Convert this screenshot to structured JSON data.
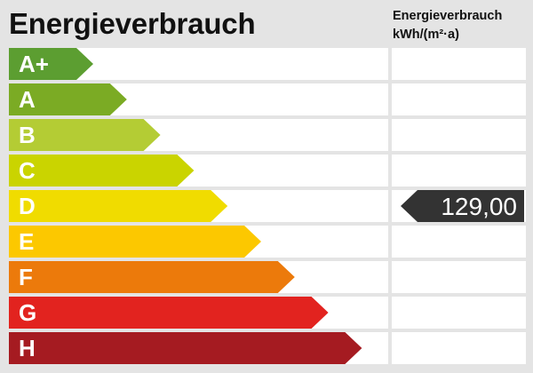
{
  "title": "Energieverbrauch",
  "column_header": {
    "line1": "Energieverbrauch",
    "line2": "kWh/(m²·a)"
  },
  "classes": [
    {
      "label": "A+",
      "color": "#5c9e31"
    },
    {
      "label": "A",
      "color": "#7bab24"
    },
    {
      "label": "B",
      "color": "#b4cc34"
    },
    {
      "label": "C",
      "color": "#cad400"
    },
    {
      "label": "D",
      "color": "#f0dc00"
    },
    {
      "label": "E",
      "color": "#fcc800"
    },
    {
      "label": "F",
      "color": "#ec7a0b"
    },
    {
      "label": "G",
      "color": "#e2231f"
    },
    {
      "label": "H",
      "color": "#a51b21"
    }
  ],
  "marker": {
    "value": "129,00",
    "class": "D",
    "color": "#333333"
  }
}
